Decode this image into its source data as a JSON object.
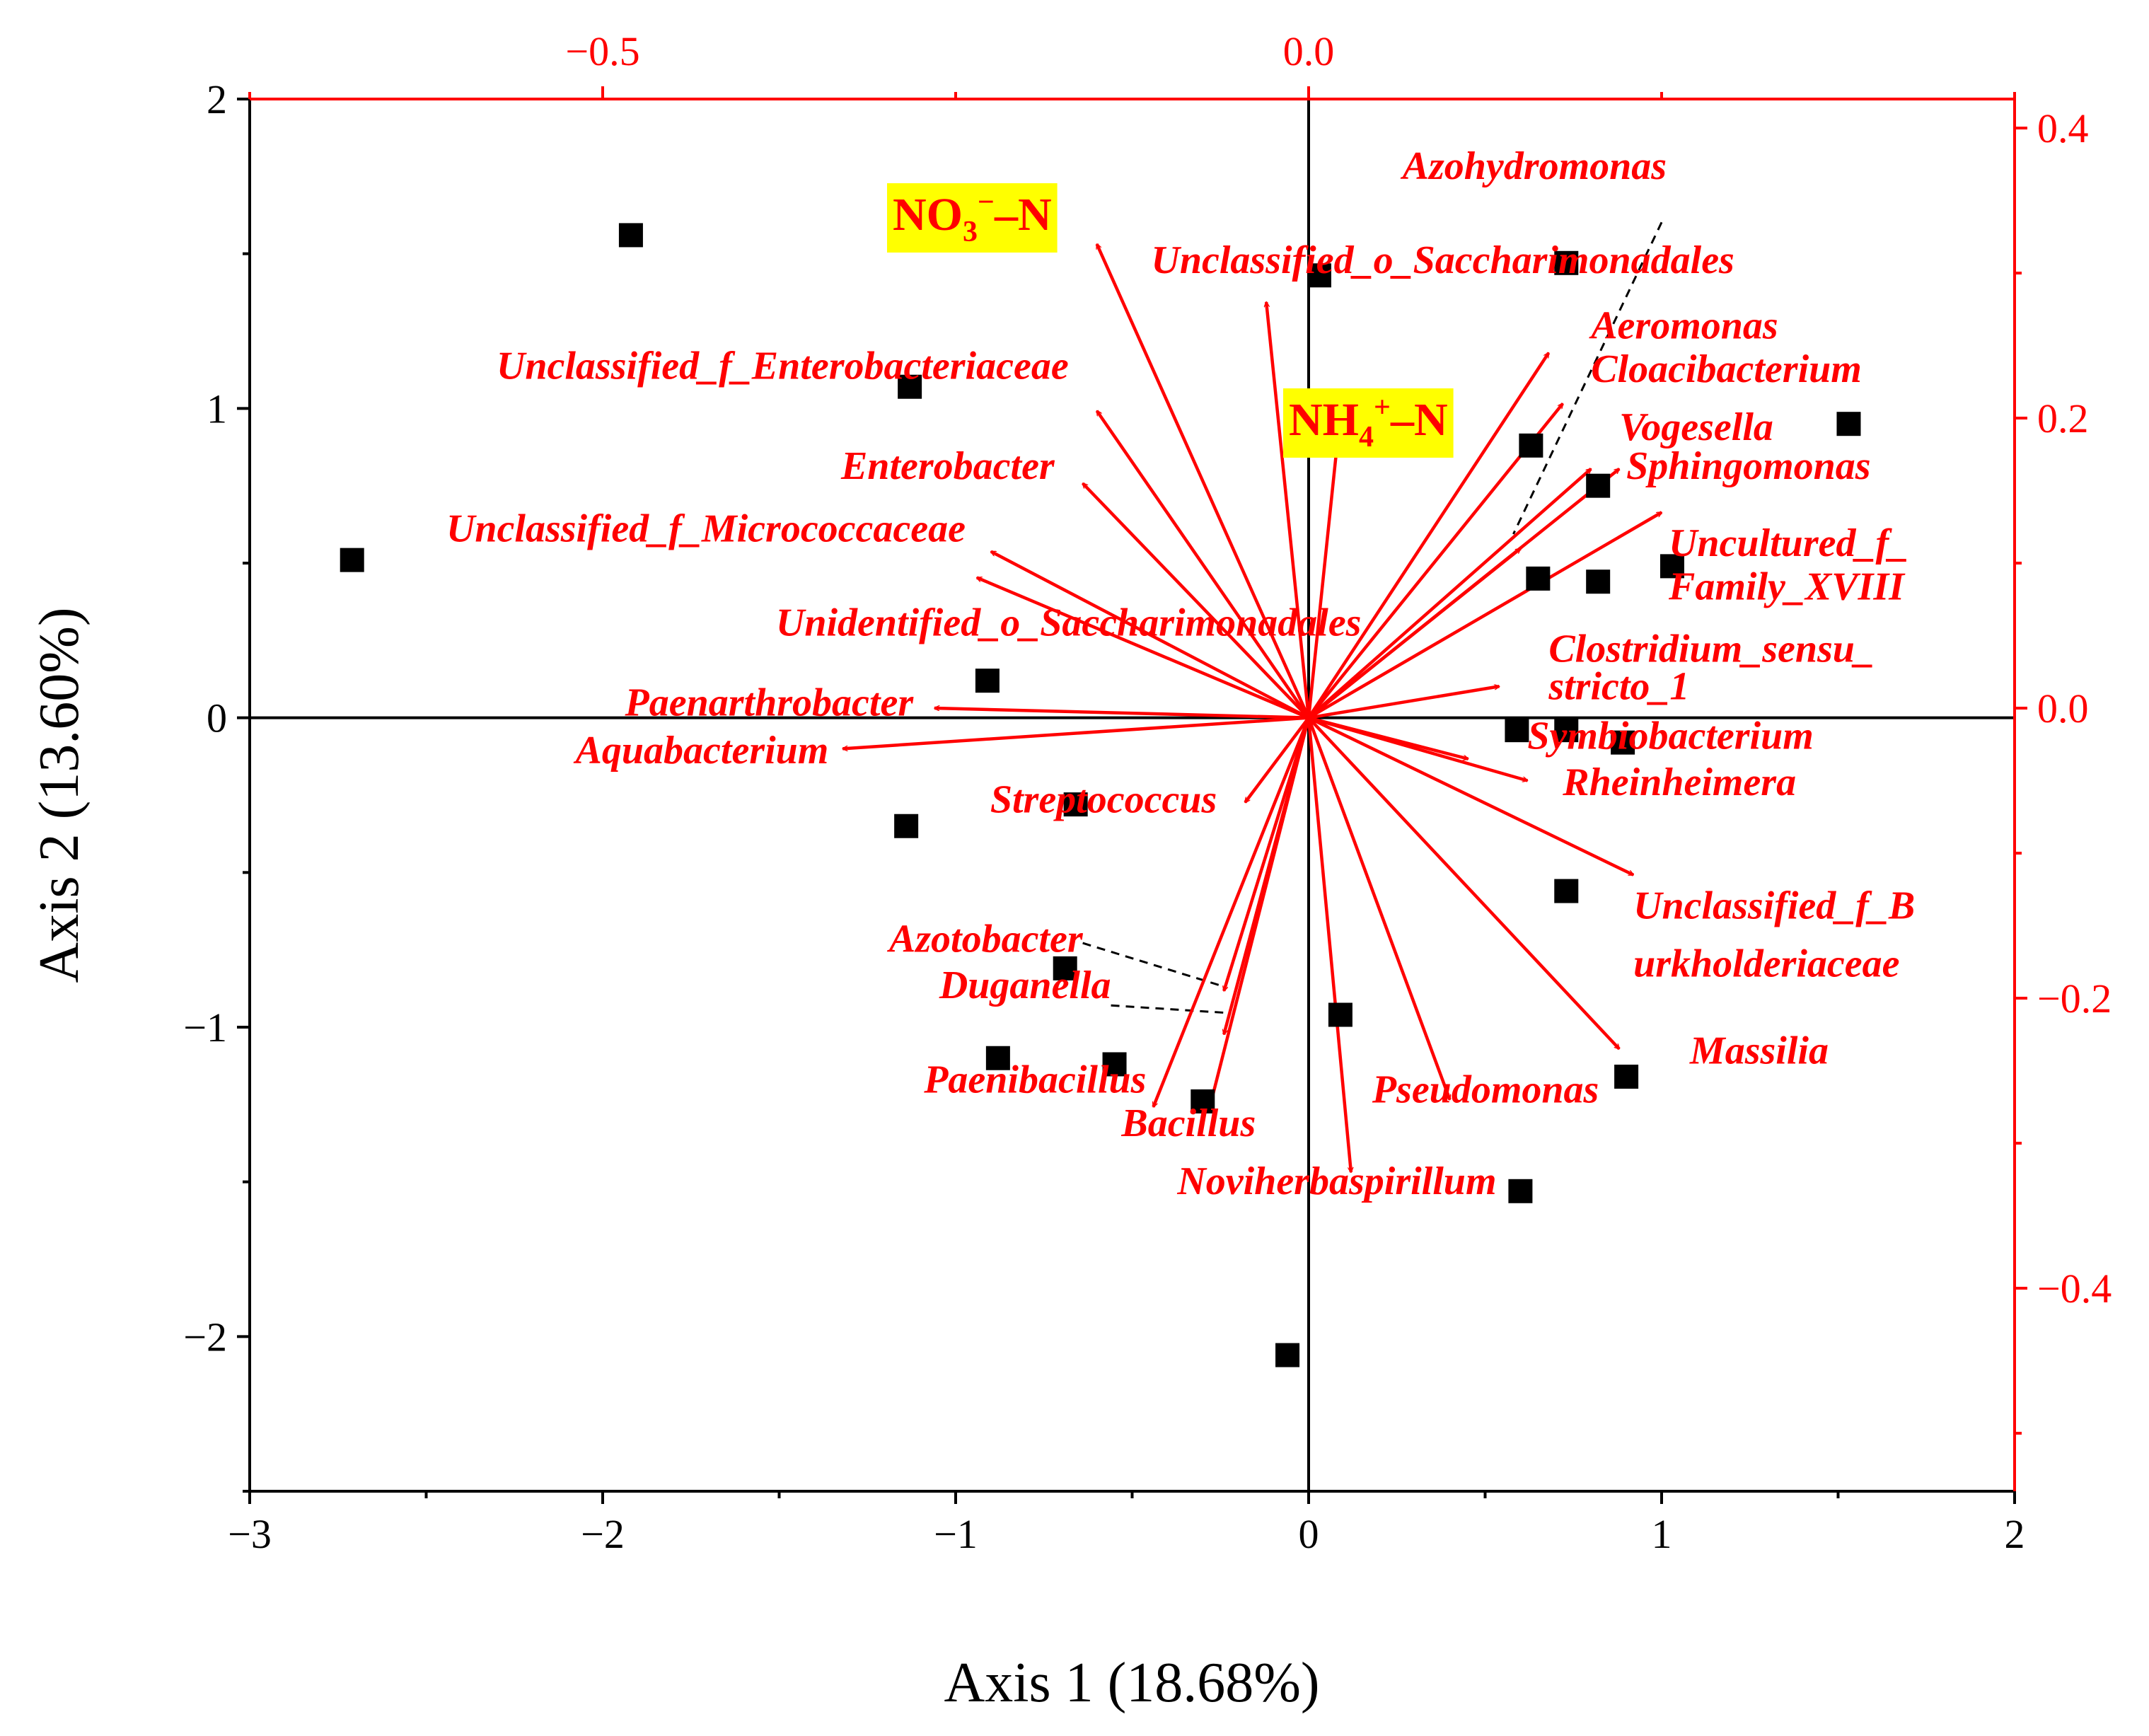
{
  "chart_data": {
    "type": "scatter",
    "subtype": "rda-biplot",
    "xlabel": "Axis 1 (18.68%)",
    "ylabel": "Axis 2 (13.60%)",
    "xlim": [
      -3,
      2
    ],
    "ylim": [
      -2.5,
      2
    ],
    "x_ticks": [
      -3,
      -2,
      -1,
      0,
      1,
      2
    ],
    "y_ticks": [
      -2,
      -1,
      0,
      1,
      2
    ],
    "x_tick_labels": [
      "−3",
      "−2",
      "−1",
      "0",
      "1",
      "2"
    ],
    "y_tick_labels": [
      "−2",
      "−1",
      "0",
      "1",
      "2"
    ],
    "x2lim": [
      -0.75,
      0.5
    ],
    "y2lim": [
      -0.54,
      0.42
    ],
    "x2_ticks": [
      -0.5,
      0.0
    ],
    "y2_ticks": [
      -0.4,
      -0.2,
      0.0,
      0.2,
      0.4
    ],
    "x2_tick_labels": [
      "−0.5",
      "0.0"
    ],
    "y2_tick_labels": [
      "−0.4",
      "−0.2",
      "0.0",
      "0.2",
      "0.4"
    ],
    "samples": [
      {
        "x": -1.92,
        "y": 1.56
      },
      {
        "x": -1.13,
        "y": 1.07
      },
      {
        "x": 0.03,
        "y": 1.43
      },
      {
        "x": 0.73,
        "y": 1.47
      },
      {
        "x": 0.63,
        "y": 0.88
      },
      {
        "x": 1.53,
        "y": 0.95
      },
      {
        "x": 0.82,
        "y": 0.75
      },
      {
        "x": 0.65,
        "y": 0.45
      },
      {
        "x": 0.82,
        "y": 0.44
      },
      {
        "x": 1.03,
        "y": 0.49
      },
      {
        "x": -2.71,
        "y": 0.51
      },
      {
        "x": -0.91,
        "y": 0.12
      },
      {
        "x": 0.59,
        "y": -0.04
      },
      {
        "x": 0.73,
        "y": -0.04
      },
      {
        "x": 0.89,
        "y": -0.08
      },
      {
        "x": -1.14,
        "y": -0.35
      },
      {
        "x": -0.66,
        "y": -0.28
      },
      {
        "x": 0.73,
        "y": -0.56
      },
      {
        "x": -0.69,
        "y": -0.81
      },
      {
        "x": 0.09,
        "y": -0.96
      },
      {
        "x": -0.88,
        "y": -1.1
      },
      {
        "x": -0.55,
        "y": -1.12
      },
      {
        "x": -0.3,
        "y": -1.24
      },
      {
        "x": 0.9,
        "y": -1.16
      },
      {
        "x": 0.6,
        "y": -1.53
      },
      {
        "x": -0.06,
        "y": -2.06
      }
    ],
    "environment": [
      {
        "name": "NO₃⁻–N",
        "main": "NO",
        "sub": "3",
        "sup": "−",
        "tail": "–N",
        "x2": -0.15,
        "y2": 0.32
      },
      {
        "name": "NH₄⁺–N",
        "main": "NH",
        "sub": "4",
        "sup": "+",
        "tail": "–N",
        "x2": 0.02,
        "y2": 0.18
      }
    ],
    "species": [
      {
        "name": "Azohydromonas",
        "x2": 0.15,
        "y2": 0.11
      },
      {
        "name": "Unclassified_o_Saccharimonadales",
        "x2": -0.03,
        "y2": 0.28
      },
      {
        "name": "Aeromonas",
        "x2": 0.17,
        "y2": 0.245
      },
      {
        "name": "Cloacibacterium",
        "x2": 0.18,
        "y2": 0.21
      },
      {
        "name": "Vogesella",
        "x2": 0.2,
        "y2": 0.165
      },
      {
        "name": "Sphingomonas",
        "x2": 0.22,
        "y2": 0.165
      },
      {
        "name": "Uncultured_f_Family_XVIII",
        "x2": 0.25,
        "y2": 0.135
      },
      {
        "name": "Unclassified_f_Enterobacteriaceae",
        "x2": -0.15,
        "y2": 0.205
      },
      {
        "name": "Enterobacter",
        "x2": -0.16,
        "y2": 0.155
      },
      {
        "name": "Unclassified_f_Micrococcaceae",
        "x2": -0.225,
        "y2": 0.108
      },
      {
        "name": "Unidentified_o_Saccharimonadales",
        "x2": -0.235,
        "y2": 0.09
      },
      {
        "name": "Paenarthrobacter",
        "x2": -0.265,
        "y2": 0.0
      },
      {
        "name": "Aquabacterium",
        "x2": -0.33,
        "y2": -0.028
      },
      {
        "name": "Clostridium_sensu_stricto_1",
        "x2": 0.135,
        "y2": 0.015
      },
      {
        "name": "Symbiobacterium",
        "x2": 0.113,
        "y2": -0.035
      },
      {
        "name": "Rheinheimera",
        "x2": 0.155,
        "y2": -0.05
      },
      {
        "name": "Unclassified_f_Burkholderiaceae",
        "x2": 0.23,
        "y2": -0.115
      },
      {
        "name": "Massilia",
        "x2": 0.22,
        "y2": -0.235
      },
      {
        "name": "Streptococcus",
        "x2": -0.045,
        "y2": -0.065
      },
      {
        "name": "Azotobacter",
        "x2": -0.06,
        "y2": -0.195
      },
      {
        "name": "Duganella",
        "x2": -0.06,
        "y2": -0.225
      },
      {
        "name": "Paenibacillus",
        "x2": -0.11,
        "y2": -0.275
      },
      {
        "name": "Bacillus",
        "x2": -0.07,
        "y2": -0.275
      },
      {
        "name": "Pseudomonas",
        "x2": 0.1,
        "y2": -0.27
      },
      {
        "name": "Noviherbaspirillum",
        "x2": 0.03,
        "y2": -0.32
      }
    ],
    "species_labels": [
      {
        "text": "Azohydromonas",
        "x2": 0.16,
        "y2": 0.365,
        "anchor": "middle"
      },
      {
        "text": "Unclassified_o_Saccharimonadales",
        "x2": 0.095,
        "y2": 0.3,
        "anchor": "middle"
      },
      {
        "text": "Aeromonas",
        "x2": 0.2,
        "y2": 0.255,
        "anchor": "start"
      },
      {
        "text": "Cloacibacterium",
        "x2": 0.2,
        "y2": 0.225,
        "anchor": "start"
      },
      {
        "text": "Vogesella",
        "x2": 0.22,
        "y2": 0.185,
        "anchor": "start"
      },
      {
        "text": "Sphingomonas",
        "x2": 0.225,
        "y2": 0.158,
        "anchor": "start"
      },
      {
        "text": "Uncultured_f_",
        "x2": 0.255,
        "y2": 0.105,
        "anchor": "start"
      },
      {
        "text": "Family_XVIII",
        "x2": 0.255,
        "y2": 0.075,
        "anchor": "start"
      },
      {
        "text": "Unclassified_f_Enterobacteriaceae",
        "x2": -0.17,
        "y2": 0.227,
        "anchor": "end"
      },
      {
        "text": "Enterobacter",
        "x2": -0.18,
        "y2": 0.158,
        "anchor": "end"
      },
      {
        "text": "Unclassified_f_Micrococcaceae",
        "x2": -0.243,
        "y2": 0.115,
        "anchor": "end"
      },
      {
        "text": "Unidentified_o_Saccharimonadales",
        "x2": -0.17,
        "y2": 0.05,
        "anchor": "middle"
      },
      {
        "text": "Paenarthrobacter",
        "x2": -0.28,
        "y2": -0.005,
        "anchor": "end"
      },
      {
        "text": "Aquabacterium",
        "x2": -0.34,
        "y2": -0.038,
        "anchor": "end"
      },
      {
        "text": "Clostridium_sensu_",
        "x2": 0.17,
        "y2": 0.032,
        "anchor": "start"
      },
      {
        "text": "stricto_1",
        "x2": 0.17,
        "y2": 0.006,
        "anchor": "start"
      },
      {
        "text": "Symbiobacterium",
        "x2": 0.155,
        "y2": -0.028,
        "anchor": "start"
      },
      {
        "text": "Rheinheimera",
        "x2": 0.18,
        "y2": -0.06,
        "anchor": "start"
      },
      {
        "text": "Unclassified_f_B",
        "x2": 0.23,
        "y2": -0.145,
        "anchor": "start"
      },
      {
        "text": "urkholderiaceae",
        "x2": 0.23,
        "y2": -0.185,
        "anchor": "start"
      },
      {
        "text": "Massilia",
        "x2": 0.27,
        "y2": -0.245,
        "anchor": "start"
      },
      {
        "text": "Streptococcus",
        "x2": -0.065,
        "y2": -0.072,
        "anchor": "end"
      },
      {
        "text": "Azotobacter",
        "x2": -0.16,
        "y2": -0.168,
        "anchor": "end"
      },
      {
        "text": "Duganella",
        "x2": -0.14,
        "y2": -0.2,
        "anchor": "end"
      },
      {
        "text": "Paenibacillus",
        "x2": -0.115,
        "y2": -0.265,
        "anchor": "end"
      },
      {
        "text": "Bacillus",
        "x2": -0.085,
        "y2": -0.295,
        "anchor": "middle"
      },
      {
        "text": "Pseudomonas",
        "x2": 0.045,
        "y2": -0.272,
        "anchor": "start"
      },
      {
        "text": "Noviherbaspirillum",
        "x2": 0.02,
        "y2": -0.335,
        "anchor": "middle"
      }
    ],
    "guides": [
      {
        "from": [
          0.25,
          0.335
        ],
        "to": [
          0.145,
          0.12
        ]
      },
      {
        "from": [
          -0.16,
          -0.162
        ],
        "to": [
          -0.06,
          -0.192
        ]
      },
      {
        "from": [
          -0.14,
          -0.205
        ],
        "to": [
          -0.06,
          -0.21
        ]
      }
    ]
  }
}
